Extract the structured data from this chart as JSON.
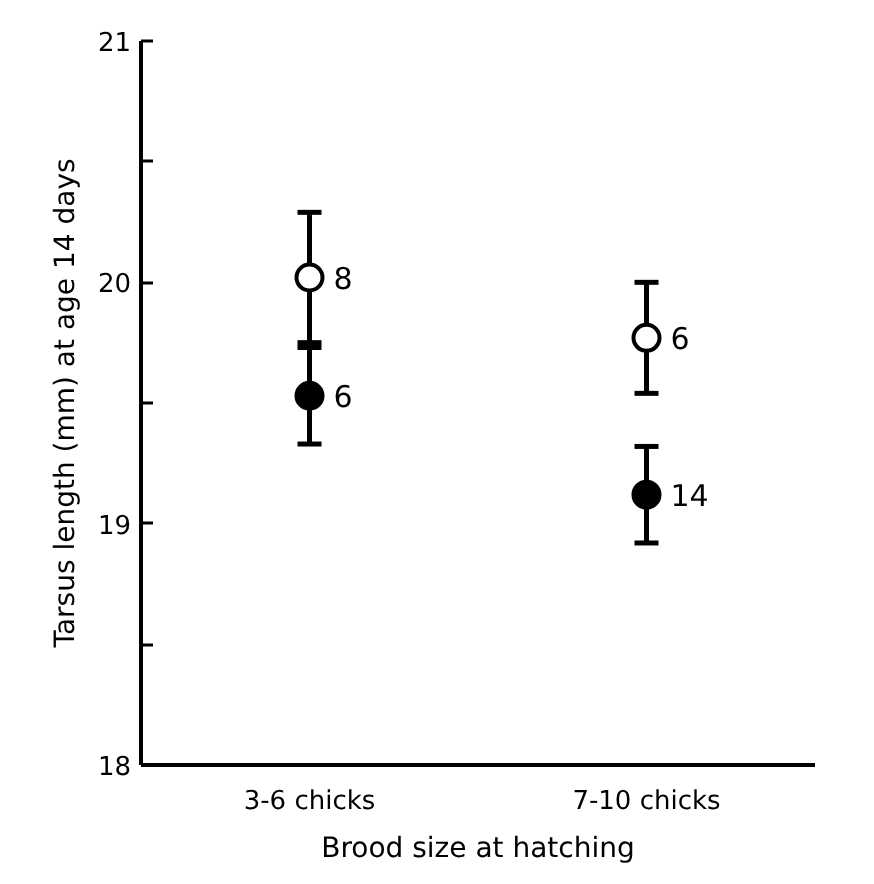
{
  "chart_data": {
    "type": "scatter",
    "xlabel": "Brood size at hatching",
    "ylabel": "Tarsus length (mm) at age 14 days",
    "categories": [
      "3-6 chicks",
      "7-10 chicks"
    ],
    "series": [
      {
        "color": "#ffffff",
        "values": [
          20.02,
          19.77
        ],
        "errors": [
          0.27,
          0.23
        ]
      },
      {
        "color": "#000000",
        "values": [
          19.53,
          19.12
        ],
        "errors": [
          0.2,
          0.2
        ]
      }
    ],
    "annotations": [
      {
        "text": "8",
        "x": "3-6 chicks",
        "y": 20.02
      },
      {
        "text": "6",
        "x": "3-6 chicks",
        "y": 19.53
      },
      {
        "text": "6",
        "x": "7-10 chicks",
        "y": 19.77
      },
      {
        "text": "14",
        "x": "7-10 chicks",
        "y": 19.12
      }
    ],
    "ylim": [
      18,
      21
    ],
    "yticks": [
      18,
      {
        "value": 18.5,
        "label": null
      },
      19,
      {
        "value": 19.5,
        "label": null
      },
      20,
      {
        "value": 20.5,
        "label": null
      },
      21
    ],
    "marker": "circle",
    "grid": false
  }
}
